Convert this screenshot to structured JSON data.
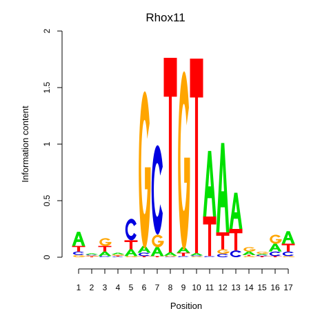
{
  "chart_data": {
    "type": "sequence_logo",
    "title": "Rhox11",
    "xlabel": "Position",
    "ylabel": "Information content",
    "ylim": [
      0,
      2
    ],
    "y_ticks": [
      "0",
      "0.5",
      "1",
      "1.5",
      "2"
    ],
    "positions": [
      "1",
      "2",
      "3",
      "4",
      "5",
      "6",
      "7",
      "8",
      "9",
      "10",
      "11",
      "12",
      "13",
      "14",
      "15",
      "16",
      "17"
    ],
    "colors": {
      "A": "#00e000",
      "C": "#0000e0",
      "G": "#ffa500",
      "T": "#ff0000"
    },
    "columns": [
      [
        [
          "G",
          0.02
        ],
        [
          "C",
          0.03
        ],
        [
          "T",
          0.05
        ],
        [
          "A",
          0.125
        ]
      ],
      [
        [
          "T",
          0.008
        ],
        [
          "G",
          0.008
        ],
        [
          "C",
          0.008
        ],
        [
          "A",
          0.01
        ]
      ],
      [
        [
          "C",
          0.01
        ],
        [
          "A",
          0.04
        ],
        [
          "T",
          0.05
        ],
        [
          "G",
          0.07
        ]
      ],
      [
        [
          "C",
          0.007
        ],
        [
          "T",
          0.008
        ],
        [
          "G",
          0.01
        ],
        [
          "A",
          0.015
        ]
      ],
      [
        [
          "G",
          0.01
        ],
        [
          "A",
          0.06
        ],
        [
          "T",
          0.08
        ],
        [
          "C",
          0.19
        ]
      ],
      [
        [
          "T",
          0.01
        ],
        [
          "C",
          0.03
        ],
        [
          "A",
          0.06
        ],
        [
          "G",
          1.39
        ]
      ],
      [
        [
          "T",
          0.01
        ],
        [
          "A",
          0.08
        ],
        [
          "G",
          0.11
        ],
        [
          "C",
          0.79
        ]
      ],
      [
        [
          "C",
          0.005
        ],
        [
          "G",
          0.008
        ],
        [
          "A",
          0.03
        ],
        [
          "T",
          1.72
        ]
      ],
      [
        [
          "C",
          0.01
        ],
        [
          "T",
          0.03
        ],
        [
          "A",
          0.05
        ],
        [
          "G",
          1.58
        ]
      ],
      [
        [
          "G",
          0.008
        ],
        [
          "C",
          0.008
        ],
        [
          "A",
          0.02
        ],
        [
          "T",
          1.72
        ]
      ],
      [
        [
          "C",
          0.01
        ],
        [
          "T",
          0.35
        ],
        [
          "A",
          0.58
        ]
      ],
      [
        [
          "C",
          0.03
        ],
        [
          "G",
          0.04
        ],
        [
          "T",
          0.15
        ],
        [
          "A",
          0.79
        ]
      ],
      [
        [
          "C",
          0.06
        ],
        [
          "T",
          0.19
        ],
        [
          "A",
          0.32
        ]
      ],
      [
        [
          "G",
          0.01
        ],
        [
          "T",
          0.01
        ],
        [
          "A",
          0.03
        ],
        [
          "G",
          0.04
        ]
      ],
      [
        [
          "T",
          0.01
        ],
        [
          "C",
          0.01
        ],
        [
          "A",
          0.01
        ],
        [
          "G",
          0.02
        ]
      ],
      [
        [
          "T",
          0.01
        ],
        [
          "C",
          0.04
        ],
        [
          "A",
          0.07
        ],
        [
          "G",
          0.08
        ]
      ],
      [
        [
          "G",
          0.01
        ],
        [
          "C",
          0.04
        ],
        [
          "T",
          0.07
        ],
        [
          "A",
          0.11
        ]
      ]
    ]
  }
}
